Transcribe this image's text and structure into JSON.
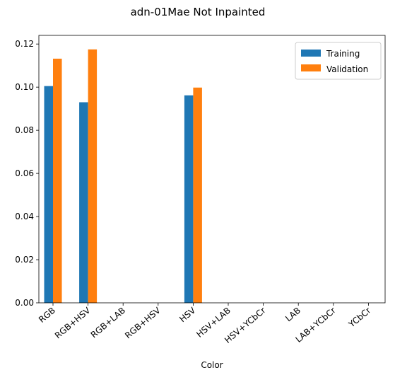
{
  "chart_data": {
    "type": "bar",
    "title": "adn-01Mae Not Inpainted",
    "xlabel": "Color",
    "ylabel": "",
    "categories": [
      "RGB",
      "RGB+HSV",
      "RGB+LAB",
      "RGB+HSV",
      "HSV",
      "HSV+LAB",
      "HSV+YCbCr",
      "LAB",
      "LAB+YCbCr",
      "YCbCr"
    ],
    "series": [
      {
        "name": "Training",
        "color": "#1f77b4",
        "values": [
          0.1005,
          0.093,
          0,
          0,
          0.0962,
          0,
          0,
          0,
          0,
          0
        ]
      },
      {
        "name": "Validation",
        "color": "#ff7f0e",
        "values": [
          0.1132,
          0.1175,
          0,
          0,
          0.0998,
          0,
          0,
          0,
          0,
          0
        ]
      }
    ],
    "ylim": [
      0,
      0.124
    ],
    "yticks": [
      "0.00",
      "0.02",
      "0.04",
      "0.06",
      "0.08",
      "0.10",
      "0.12"
    ],
    "ytick_values": [
      0,
      0.02,
      0.04,
      0.06,
      0.08,
      0.1,
      0.12
    ],
    "grid": false,
    "legend_position": "top-right"
  }
}
